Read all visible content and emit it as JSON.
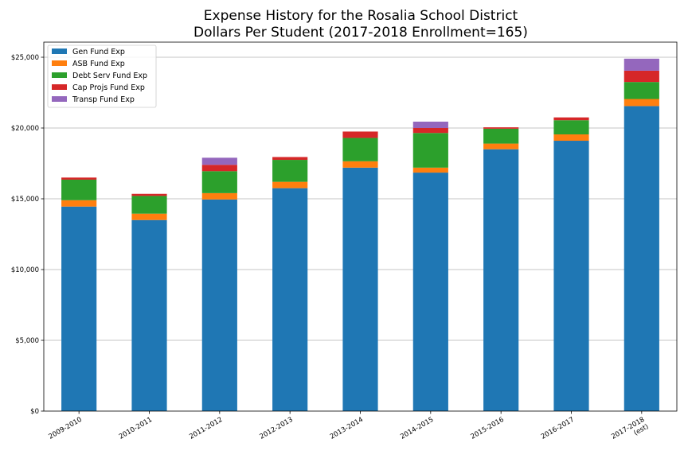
{
  "chart_data": {
    "type": "bar",
    "stacked": true,
    "title": [
      "Expense History for the Rosalia School District",
      "Dollars Per Student (2017-2018 Enrollment=165)"
    ],
    "xlabel": "",
    "ylabel": "",
    "categories": [
      "2009-2010",
      "2010-2011",
      "2011-2012",
      "2012-2013",
      "2013-2014",
      "2014-2015",
      "2015-2016",
      "2016-2017",
      "2017-2018\n(est)"
    ],
    "ylim": [
      0,
      25000
    ],
    "yticks": [
      0,
      5000,
      10000,
      15000,
      20000,
      25000
    ],
    "ytick_labels": [
      "$0",
      "$5,000",
      "$10,000",
      "$15,000",
      "$20,000",
      "$25,000"
    ],
    "grid": "horizontal",
    "legend_position": "top-left",
    "series": [
      {
        "name": "Gen Fund Exp",
        "color": "#1f77b4",
        "values": [
          14450,
          13500,
          14950,
          15750,
          17200,
          16850,
          18500,
          19100,
          21550
        ]
      },
      {
        "name": "ASB Fund Exp",
        "color": "#ff7f0e",
        "values": [
          450,
          450,
          450,
          450,
          450,
          350,
          400,
          450,
          500
        ]
      },
      {
        "name": "Debt Serv Fund Exp",
        "color": "#2ca02c",
        "values": [
          1450,
          1250,
          1550,
          1550,
          1650,
          2450,
          1050,
          1000,
          1200
        ]
      },
      {
        "name": "Cap Projs Fund Exp",
        "color": "#d62728",
        "values": [
          150,
          150,
          450,
          200,
          450,
          350,
          100,
          200,
          800
        ]
      },
      {
        "name": "Transp Fund Exp",
        "color": "#9467bd",
        "values": [
          0,
          0,
          500,
          0,
          0,
          450,
          0,
          0,
          850
        ]
      }
    ]
  }
}
